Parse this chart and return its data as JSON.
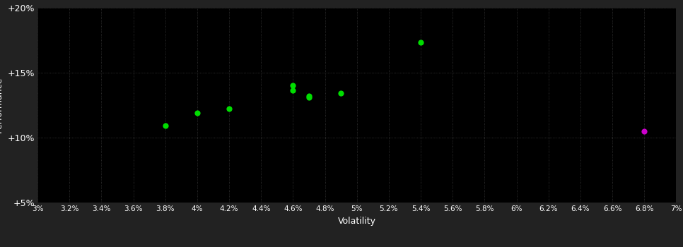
{
  "background_color": "#222222",
  "plot_bg_color": "#000000",
  "grid_color": "#3a3a3a",
  "text_color": "#ffffff",
  "xlabel": "Volatility",
  "xlim": [
    0.03,
    0.07
  ],
  "ylim": [
    0.05,
    0.2
  ],
  "xticks": [
    0.03,
    0.032,
    0.034,
    0.036,
    0.038,
    0.04,
    0.042,
    0.044,
    0.046,
    0.048,
    0.05,
    0.052,
    0.054,
    0.056,
    0.058,
    0.06,
    0.062,
    0.064,
    0.066,
    0.068,
    0.07
  ],
  "xtick_labels": [
    "3%",
    "3.2%",
    "3.4%",
    "3.6%",
    "3.8%",
    "4%",
    "4.2%",
    "4.4%",
    "4.6%",
    "4.8%",
    "5%",
    "5.2%",
    "5.4%",
    "5.6%",
    "5.8%",
    "6%",
    "6.2%",
    "6.4%",
    "6.6%",
    "6.8%",
    "7%"
  ],
  "yticks": [
    0.05,
    0.1,
    0.15,
    0.2
  ],
  "ytick_labels": [
    "+5%",
    "+10%",
    "+15%",
    "+20%"
  ],
  "green_points": [
    [
      0.038,
      0.109
    ],
    [
      0.04,
      0.119
    ],
    [
      0.042,
      0.122
    ],
    [
      0.046,
      0.14
    ],
    [
      0.046,
      0.136
    ],
    [
      0.047,
      0.132
    ],
    [
      0.047,
      0.131
    ],
    [
      0.049,
      0.134
    ],
    [
      0.054,
      0.173
    ]
  ],
  "magenta_points": [
    [
      0.068,
      0.105
    ]
  ],
  "green_color": "#00dd00",
  "magenta_color": "#cc00cc",
  "marker_size": 35
}
